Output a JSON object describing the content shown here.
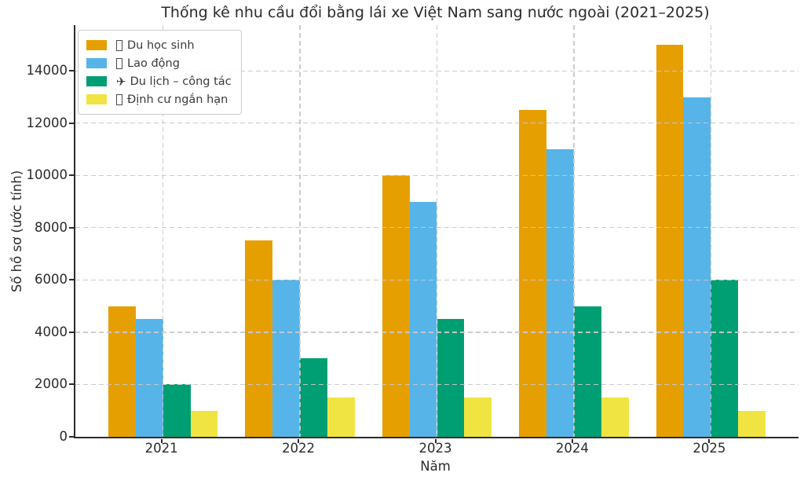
{
  "chart_data": {
    "type": "bar",
    "title": "Thống kê nhu cầu đổi bằng lái xe Việt Nam sang nước ngoài (2021–2025)",
    "xlabel": "Năm",
    "ylabel": "Số hồ sơ (ước tính)",
    "categories": [
      "2021",
      "2022",
      "2023",
      "2024",
      "2025"
    ],
    "series": [
      {
        "name": "Du học sinh",
        "legend_glyph": "missing-glyph",
        "color": "#E69F00",
        "values": [
          5000,
          7500,
          10000,
          12500,
          15000
        ]
      },
      {
        "name": "Lao động",
        "legend_glyph": "missing-glyph",
        "color": "#56B4E9",
        "values": [
          4500,
          6000,
          9000,
          11000,
          13000
        ]
      },
      {
        "name": "Du lịch – công tác",
        "legend_glyph": "✈",
        "color": "#009E73",
        "values": [
          2000,
          3000,
          4500,
          5000,
          6000
        ]
      },
      {
        "name": "Định cư ngắn hạn",
        "legend_glyph": "missing-glyph",
        "color": "#F0E442",
        "values": [
          1000,
          1500,
          1500,
          1500,
          1000
        ]
      }
    ],
    "yticks": [
      0,
      2000,
      4000,
      6000,
      8000,
      10000,
      12000,
      14000
    ],
    "ylim": [
      0,
      15750
    ],
    "xlim": [
      -0.64,
      4.64
    ],
    "bar_width_units": 0.2,
    "grid": "dashed, both axes, drawn above bars",
    "legend_position": "upper left"
  },
  "style_colors": {
    "background": "#ffffff",
    "spine": "#2b2b2b",
    "grid": "#c9c9c9",
    "text": "#2a2a2a",
    "legend_border": "#cccccc"
  }
}
